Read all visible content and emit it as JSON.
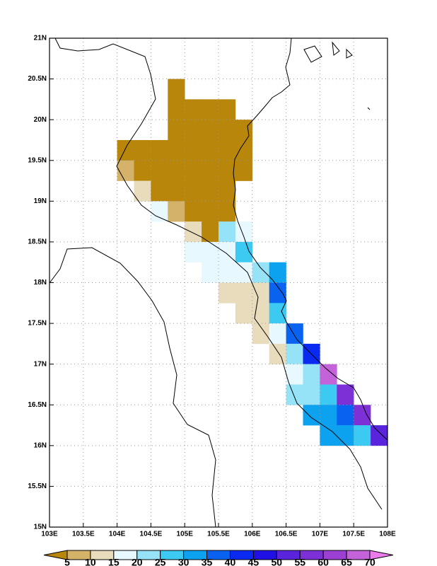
{
  "chart_data": {
    "type": "grid_map",
    "xlim": [
      103,
      108
    ],
    "ylim": [
      15,
      21
    ],
    "cell_size": 0.25,
    "grid": true,
    "xticks": [
      {
        "value": 103,
        "label": "103E"
      },
      {
        "value": 103.5,
        "label": "103.5E"
      },
      {
        "value": 104,
        "label": "104E"
      },
      {
        "value": 104.5,
        "label": "104.5E"
      },
      {
        "value": 105,
        "label": "105E"
      },
      {
        "value": 105.5,
        "label": "105.5E"
      },
      {
        "value": 106,
        "label": "106E"
      },
      {
        "value": 106.5,
        "label": "106.5E"
      },
      {
        "value": 107,
        "label": "107E"
      },
      {
        "value": 107.5,
        "label": "107.5E"
      },
      {
        "value": 108,
        "label": "108E"
      }
    ],
    "yticks": [
      {
        "value": 15,
        "label": "15N"
      },
      {
        "value": 15.5,
        "label": "15.5N"
      },
      {
        "value": 16,
        "label": "16N"
      },
      {
        "value": 16.5,
        "label": "16.5N"
      },
      {
        "value": 17,
        "label": "17N"
      },
      {
        "value": 17.5,
        "label": "17.5N"
      },
      {
        "value": 18,
        "label": "18N"
      },
      {
        "value": 18.5,
        "label": "18.5N"
      },
      {
        "value": 19,
        "label": "19N"
      },
      {
        "value": 19.5,
        "label": "19.5N"
      },
      {
        "value": 20,
        "label": "20N"
      },
      {
        "value": 20.5,
        "label": "20.5N"
      },
      {
        "value": 21,
        "label": "21N"
      }
    ],
    "levels": [
      5,
      10,
      15,
      20,
      25,
      30,
      35,
      40,
      45,
      50,
      55,
      60,
      65,
      70
    ],
    "colors": [
      "#b8860b",
      "#d4b26a",
      "#e8dcbc",
      "#e8f8ff",
      "#96e2f6",
      "#3ccaf2",
      "#0ca2f0",
      "#0a62f0",
      "#0a2af2",
      "#2010e6",
      "#5a24dc",
      "#7c30d6",
      "#9c40d4",
      "#c462da",
      "#ec7cec"
    ],
    "cells": [
      {
        "lon": 104.75,
        "lat": 20.25,
        "value": 2
      },
      {
        "lon": 104.75,
        "lat": 20.0,
        "value": 2
      },
      {
        "lon": 105.0,
        "lat": 20.0,
        "value": 2
      },
      {
        "lon": 105.25,
        "lat": 20.0,
        "value": 2
      },
      {
        "lon": 105.5,
        "lat": 20.0,
        "value": 2
      },
      {
        "lon": 104.75,
        "lat": 19.75,
        "value": 2
      },
      {
        "lon": 105.0,
        "lat": 19.75,
        "value": 2
      },
      {
        "lon": 105.25,
        "lat": 19.75,
        "value": 2
      },
      {
        "lon": 105.5,
        "lat": 19.75,
        "value": 2
      },
      {
        "lon": 105.75,
        "lat": 19.75,
        "value": 2
      },
      {
        "lon": 104.0,
        "lat": 19.5,
        "value": 2
      },
      {
        "lon": 104.25,
        "lat": 19.5,
        "value": 2
      },
      {
        "lon": 104.5,
        "lat": 19.5,
        "value": 2
      },
      {
        "lon": 104.75,
        "lat": 19.5,
        "value": 2
      },
      {
        "lon": 105.0,
        "lat": 19.5,
        "value": 2
      },
      {
        "lon": 105.25,
        "lat": 19.5,
        "value": 2
      },
      {
        "lon": 105.5,
        "lat": 19.5,
        "value": 2
      },
      {
        "lon": 105.75,
        "lat": 19.5,
        "value": 2
      },
      {
        "lon": 104.0,
        "lat": 19.25,
        "value": 7
      },
      {
        "lon": 104.25,
        "lat": 19.25,
        "value": 2
      },
      {
        "lon": 104.5,
        "lat": 19.25,
        "value": 2
      },
      {
        "lon": 104.75,
        "lat": 19.25,
        "value": 2
      },
      {
        "lon": 105.0,
        "lat": 19.25,
        "value": 2
      },
      {
        "lon": 105.25,
        "lat": 19.25,
        "value": 2
      },
      {
        "lon": 105.5,
        "lat": 19.25,
        "value": 2
      },
      {
        "lon": 105.75,
        "lat": 19.25,
        "value": 2
      },
      {
        "lon": 104.25,
        "lat": 19.0,
        "value": 12
      },
      {
        "lon": 104.5,
        "lat": 19.0,
        "value": 2
      },
      {
        "lon": 104.75,
        "lat": 19.0,
        "value": 2
      },
      {
        "lon": 105.0,
        "lat": 19.0,
        "value": 2
      },
      {
        "lon": 105.25,
        "lat": 19.0,
        "value": 2
      },
      {
        "lon": 105.5,
        "lat": 19.0,
        "value": 2
      },
      {
        "lon": 104.5,
        "lat": 18.75,
        "value": 17
      },
      {
        "lon": 104.75,
        "lat": 18.75,
        "value": 7
      },
      {
        "lon": 105.0,
        "lat": 18.75,
        "value": 2
      },
      {
        "lon": 105.25,
        "lat": 18.75,
        "value": 2
      },
      {
        "lon": 105.5,
        "lat": 18.75,
        "value": 2
      },
      {
        "lon": 105.0,
        "lat": 18.5,
        "value": 12
      },
      {
        "lon": 105.25,
        "lat": 18.5,
        "value": 2
      },
      {
        "lon": 105.5,
        "lat": 18.5,
        "value": 22
      },
      {
        "lon": 105.75,
        "lat": 18.5,
        "value": 17
      },
      {
        "lon": 105.0,
        "lat": 18.25,
        "value": 17
      },
      {
        "lon": 105.25,
        "lat": 18.25,
        "value": 17
      },
      {
        "lon": 105.5,
        "lat": 18.25,
        "value": 17
      },
      {
        "lon": 105.75,
        "lat": 18.25,
        "value": 27
      },
      {
        "lon": 105.25,
        "lat": 18.0,
        "value": 17
      },
      {
        "lon": 105.5,
        "lat": 18.0,
        "value": 17
      },
      {
        "lon": 105.75,
        "lat": 18.0,
        "value": 17
      },
      {
        "lon": 106.0,
        "lat": 18.0,
        "value": 22
      },
      {
        "lon": 106.25,
        "lat": 18.0,
        "value": 32
      },
      {
        "lon": 105.5,
        "lat": 17.75,
        "value": 12
      },
      {
        "lon": 105.75,
        "lat": 17.75,
        "value": 12
      },
      {
        "lon": 106.0,
        "lat": 17.75,
        "value": 12
      },
      {
        "lon": 106.25,
        "lat": 17.75,
        "value": 37
      },
      {
        "lon": 105.75,
        "lat": 17.5,
        "value": 12
      },
      {
        "lon": 106.0,
        "lat": 17.5,
        "value": 12
      },
      {
        "lon": 106.25,
        "lat": 17.5,
        "value": 27
      },
      {
        "lon": 106.0,
        "lat": 17.25,
        "value": 12
      },
      {
        "lon": 106.25,
        "lat": 17.25,
        "value": 17
      },
      {
        "lon": 106.5,
        "lat": 17.25,
        "value": 37
      },
      {
        "lon": 106.25,
        "lat": 17.0,
        "value": 12
      },
      {
        "lon": 106.5,
        "lat": 17.0,
        "value": 22
      },
      {
        "lon": 106.75,
        "lat": 17.0,
        "value": 42
      },
      {
        "lon": 106.5,
        "lat": 16.75,
        "value": 17
      },
      {
        "lon": 106.75,
        "lat": 16.75,
        "value": 22
      },
      {
        "lon": 107.0,
        "lat": 16.75,
        "value": 67
      },
      {
        "lon": 106.5,
        "lat": 16.5,
        "value": 22
      },
      {
        "lon": 106.75,
        "lat": 16.5,
        "value": 22
      },
      {
        "lon": 107.0,
        "lat": 16.5,
        "value": 27
      },
      {
        "lon": 107.25,
        "lat": 16.5,
        "value": 57
      },
      {
        "lon": 106.75,
        "lat": 16.25,
        "value": 32
      },
      {
        "lon": 107.0,
        "lat": 16.25,
        "value": 32
      },
      {
        "lon": 107.25,
        "lat": 16.25,
        "value": 37
      },
      {
        "lon": 107.5,
        "lat": 16.25,
        "value": 57
      },
      {
        "lon": 107.0,
        "lat": 16.0,
        "value": 32
      },
      {
        "lon": 107.25,
        "lat": 16.0,
        "value": 32
      },
      {
        "lon": 107.5,
        "lat": 16.0,
        "value": 27
      },
      {
        "lon": 107.75,
        "lat": 16.0,
        "value": 52
      }
    ]
  }
}
